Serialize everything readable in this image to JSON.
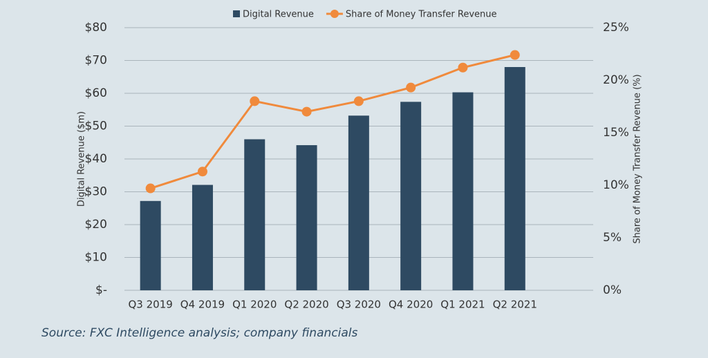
{
  "chart_data": {
    "type": "bar-line",
    "categories": [
      "Q3 2019",
      "Q4 2019",
      "Q1 2020",
      "Q2 2020",
      "Q3 2020",
      "Q4 2020",
      "Q1 2021",
      "Q2 2021"
    ],
    "series": [
      {
        "name": "Digital Revenue",
        "type": "bar",
        "color": "#2e4a62",
        "values": [
          27.2,
          32.1,
          46,
          44.2,
          53.2,
          57.4,
          60.3,
          68
        ]
      },
      {
        "name": "Share of Money Transfer Revenue",
        "type": "line",
        "axis": "y2",
        "color": "#f08a3c",
        "values": [
          9.7,
          11.3,
          18,
          17,
          18,
          19.3,
          21.2,
          22.4
        ]
      }
    ],
    "ylabel": "Digital Revenue ($m)",
    "y2label": "Share of Money Transfer Revenue (%)",
    "ylim": [
      0,
      80
    ],
    "yticks": [
      {
        "value": 0,
        "label": "$-"
      },
      {
        "value": 10,
        "label": "$10"
      },
      {
        "value": 20,
        "label": "$20"
      },
      {
        "value": 30,
        "label": "$30"
      },
      {
        "value": 40,
        "label": "$40"
      },
      {
        "value": 50,
        "label": "$50"
      },
      {
        "value": 60,
        "label": "$60"
      },
      {
        "value": 70,
        "label": "$70"
      },
      {
        "value": 80,
        "label": "$80"
      }
    ],
    "y2lim": [
      0,
      25
    ],
    "y2ticks": [
      {
        "value": 0,
        "label": "0%"
      },
      {
        "value": 5,
        "label": "5%"
      },
      {
        "value": 10,
        "label": "10%"
      },
      {
        "value": 15,
        "label": "15%"
      },
      {
        "value": 20,
        "label": "20%"
      },
      {
        "value": 25,
        "label": "25%"
      }
    ],
    "grid": true,
    "legend": "top",
    "source": "Source: FXC Intelligence analysis; company financials"
  }
}
